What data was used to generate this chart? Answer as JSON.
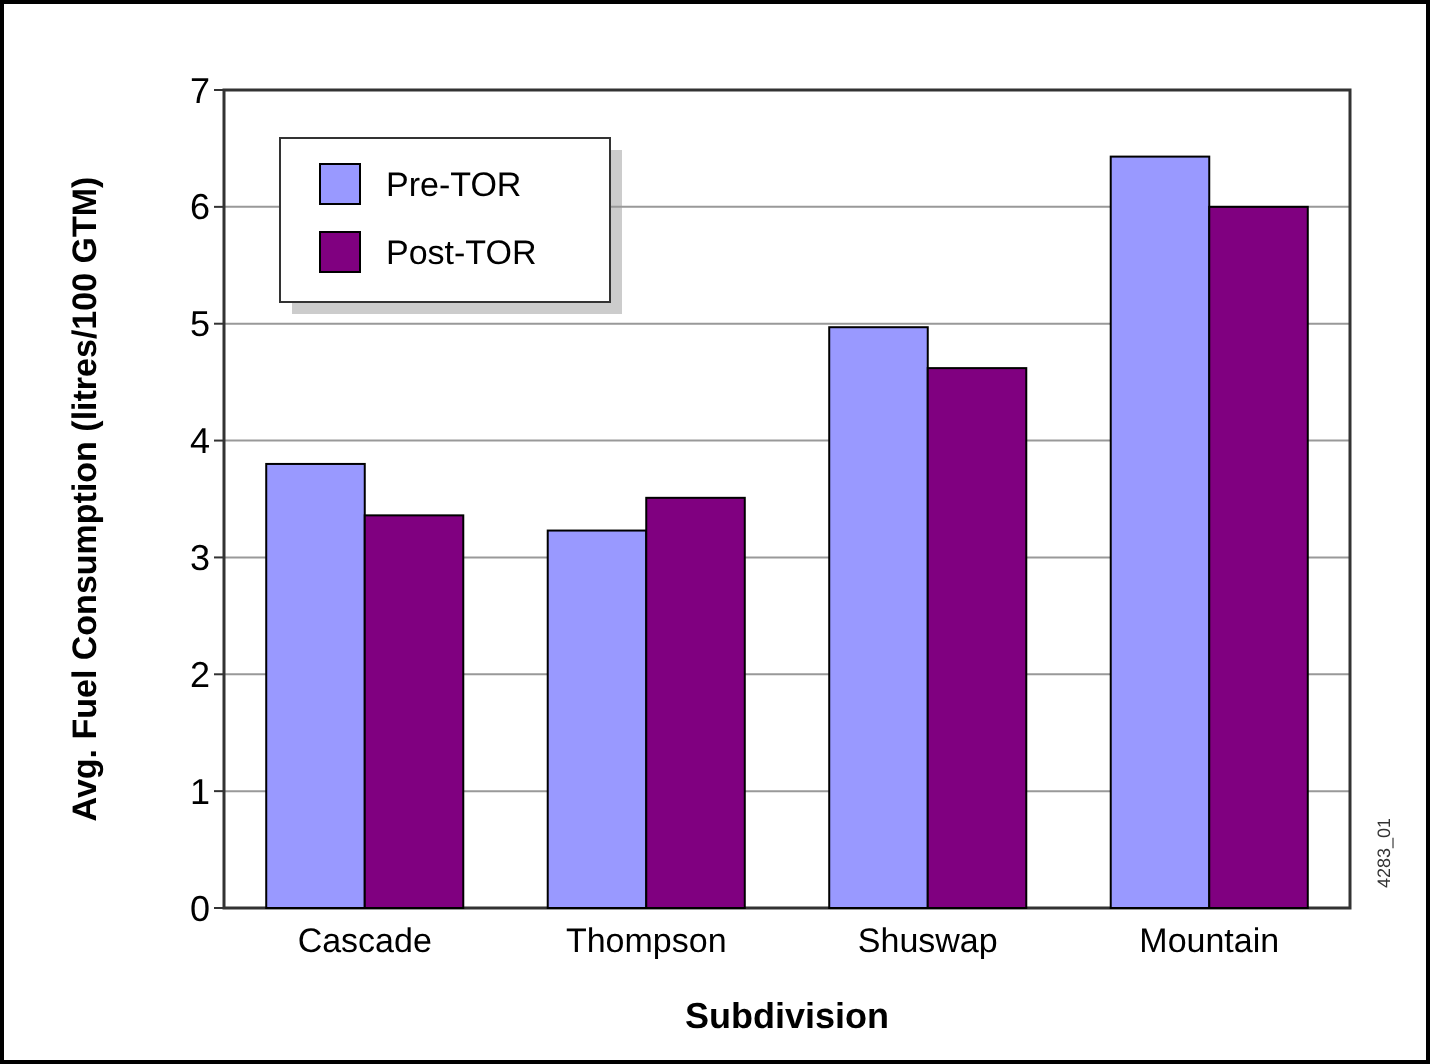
{
  "chart_data": {
    "type": "bar",
    "xlabel": "Subdivision",
    "ylabel": "Avg. Fuel Consumption (litres/100 GTM)",
    "categories": [
      "Cascade",
      "Thompson",
      "Shuswap",
      "Mountain"
    ],
    "series": [
      {
        "name": "Pre-TOR",
        "color": "#9999ff",
        "values": [
          3.8,
          3.23,
          4.97,
          6.43
        ]
      },
      {
        "name": "Post-TOR",
        "color": "#800080",
        "values": [
          3.36,
          3.51,
          4.62,
          6.0
        ]
      }
    ],
    "ylim": [
      0,
      7
    ],
    "yticks": [
      0,
      1,
      2,
      3,
      4,
      5,
      6,
      7
    ],
    "grid": "y",
    "legend": "top left",
    "annotations": [
      "4283_01"
    ]
  }
}
